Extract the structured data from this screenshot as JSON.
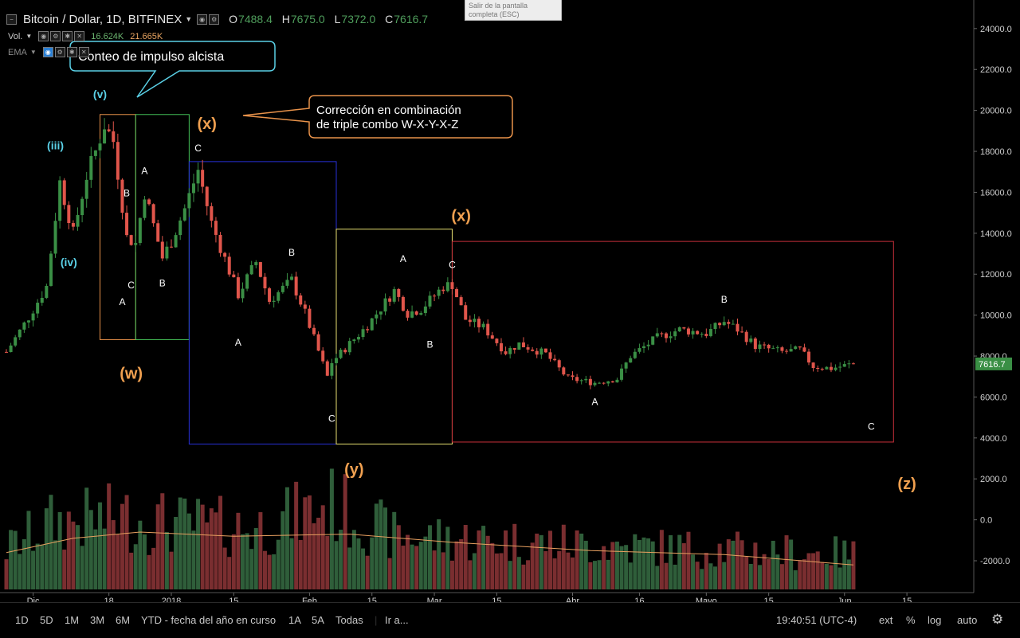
{
  "header": {
    "symbol": "Bitcoin / Dollar, 1D, BITFINEX",
    "ohlc": [
      {
        "k": "O",
        "v": "7488.4"
      },
      {
        "k": "H",
        "v": "7675.0"
      },
      {
        "k": "L",
        "v": "7372.0"
      },
      {
        "k": "C",
        "v": "7616.7"
      }
    ]
  },
  "tooltip": "Salir de la pantalla completa (ESC)",
  "indicators": {
    "vol_label": "Vol.",
    "vol_value1": "16.624K",
    "vol_value2": "21.665K",
    "ema_label": "EMA"
  },
  "annotations": {
    "impulse_callout": "Conteo de impulso alcista",
    "correction_line1": "Corrección en combinación",
    "correction_line2": "de triple combo W-X-Y-X-Z"
  },
  "toolbar": {
    "ranges": [
      "1D",
      "5D",
      "1M",
      "3M",
      "6M",
      "YTD - fecha del año en curso",
      "1A",
      "5A",
      "Todas"
    ],
    "goto": "Ir a...",
    "clock": "19:40:51 (UTC-4)",
    "options": [
      "ext",
      "%",
      "log",
      "auto"
    ]
  },
  "colors": {
    "up": "#3a8f45",
    "down": "#e0554b",
    "wave_main": "#f0a050",
    "wave_impulse": "#5ad0e6",
    "box_w": "#e8924a",
    "box_x1": "#44c058",
    "box_y": "#2830d8",
    "box_x2": "#e8e070",
    "box_z": "#c8303a",
    "price_tag": "#3a8f45"
  },
  "chart_data": {
    "type": "candlestick",
    "title": "Bitcoin / Dollar, 1D, BITFINEX",
    "y_ticks": [
      "24000.0",
      "22000.0",
      "20000.0",
      "18000.0",
      "16000.0",
      "14000.0",
      "12000.0",
      "10000.0",
      "8000.0",
      "6000.0",
      "4000.0",
      "2000.0",
      "0.0",
      "-2000.0"
    ],
    "x_ticks": [
      "Dic",
      "18",
      "2018",
      "15",
      "Feb",
      "15",
      "Mar",
      "15",
      "Abr",
      "16",
      "Mayo",
      "15",
      "Jun",
      "15"
    ],
    "ylim": [
      -3400,
      25200
    ],
    "last_price": "7616.7",
    "price_path": [
      [
        "2017-11-25",
        8200
      ],
      [
        "2017-11-30",
        9900
      ],
      [
        "2017-12-04",
        11400
      ],
      [
        "2017-12-07",
        16500
      ],
      [
        "2017-12-10",
        14000
      ],
      [
        "2017-12-13",
        16800
      ],
      [
        "2017-12-15",
        18000
      ],
      [
        "2017-12-17",
        19300
      ],
      [
        "2017-12-19",
        18500
      ],
      [
        "2017-12-22",
        13800
      ],
      [
        "2017-12-24",
        13500
      ],
      [
        "2017-12-26",
        16000
      ],
      [
        "2017-12-30",
        12800
      ],
      [
        "2018-01-01",
        13600
      ],
      [
        "2018-01-04",
        15200
      ],
      [
        "2018-01-07",
        17100
      ],
      [
        "2018-01-10",
        14500
      ],
      [
        "2018-01-16",
        11000
      ],
      [
        "2018-01-20",
        12600
      ],
      [
        "2018-01-23",
        10700
      ],
      [
        "2018-01-28",
        11700
      ],
      [
        "2018-01-31",
        10100
      ],
      [
        "2018-02-05",
        7000
      ],
      [
        "2018-02-06",
        7700
      ],
      [
        "2018-02-10",
        8600
      ],
      [
        "2018-02-14",
        9500
      ],
      [
        "2018-02-20",
        11200
      ],
      [
        "2018-02-23",
        10100
      ],
      [
        "2018-02-26",
        10300
      ],
      [
        "2018-03-03",
        11400
      ],
      [
        "2018-03-05",
        11500
      ],
      [
        "2018-03-08",
        9800
      ],
      [
        "2018-03-12",
        9400
      ],
      [
        "2018-03-17",
        8200
      ],
      [
        "2018-03-20",
        8600
      ],
      [
        "2018-03-26",
        8100
      ],
      [
        "2018-03-31",
        6900
      ],
      [
        "2018-04-06",
        6700
      ],
      [
        "2018-04-11",
        6900
      ],
      [
        "2018-04-14",
        8000
      ],
      [
        "2018-04-20",
        8900
      ],
      [
        "2018-04-25",
        9300
      ],
      [
        "2018-05-01",
        9100
      ],
      [
        "2018-05-05",
        9700
      ],
      [
        "2018-05-08",
        9300
      ],
      [
        "2018-05-12",
        8500
      ],
      [
        "2018-05-18",
        8200
      ],
      [
        "2018-05-22",
        8300
      ],
      [
        "2018-05-25",
        7500
      ],
      [
        "2018-05-29",
        7400
      ],
      [
        "2018-06-03",
        7616.7
      ]
    ],
    "volume_path": [
      [
        "2017-11-25",
        2200
      ],
      [
        "2017-12-05",
        3600
      ],
      [
        "2017-12-20",
        3900
      ],
      [
        "2018-01-05",
        3500
      ],
      [
        "2018-01-20",
        3300
      ],
      [
        "2018-02-06",
        4600
      ],
      [
        "2018-02-20",
        2900
      ],
      [
        "2018-03-10",
        2700
      ],
      [
        "2018-04-05",
        2400
      ],
      [
        "2018-05-01",
        2200
      ],
      [
        "2018-06-03",
        1900
      ]
    ],
    "volume_ema_path": [
      [
        "2017-11-25",
        1800
      ],
      [
        "2017-12-10",
        2500
      ],
      [
        "2017-12-25",
        2800
      ],
      [
        "2018-01-15",
        2600
      ],
      [
        "2018-02-10",
        2700
      ],
      [
        "2018-03-05",
        2300
      ],
      [
        "2018-04-05",
        1900
      ],
      [
        "2018-05-05",
        1700
      ],
      [
        "2018-06-03",
        1200
      ]
    ],
    "boxes": [
      {
        "name": "w",
        "start": "2017-12-16",
        "end": "2017-12-24",
        "top": 19800,
        "bottom": 8800
      },
      {
        "name": "x1",
        "start": "2017-12-24",
        "end": "2018-01-05",
        "top": 19800,
        "bottom": 8800
      },
      {
        "name": "y",
        "start": "2018-01-05",
        "end": "2018-02-07",
        "top": 17500,
        "bottom": 3700
      },
      {
        "name": "x2",
        "start": "2018-02-07",
        "end": "2018-03-05",
        "top": 14200,
        "bottom": 3700
      },
      {
        "name": "z",
        "start": "2018-03-05",
        "end": "2018-06-12",
        "top": 13600,
        "bottom": 3800
      }
    ],
    "wave_labels": [
      {
        "text": "(v)",
        "date": "2017-12-16",
        "price": 20600,
        "kind": "impulse"
      },
      {
        "text": "(iii)",
        "date": "2017-12-06",
        "price": 18100,
        "kind": "impulse"
      },
      {
        "text": "(iv)",
        "date": "2017-12-09",
        "price": 12400,
        "kind": "impulse"
      },
      {
        "text": "(w)",
        "date": "2017-12-23",
        "price": 6900,
        "kind": "main"
      },
      {
        "text": "(x)",
        "date": "2018-01-09",
        "price": 19100,
        "kind": "main"
      },
      {
        "text": "(y)",
        "date": "2018-02-11",
        "price": 2200,
        "kind": "main"
      },
      {
        "text": "(x)",
        "date": "2018-03-07",
        "price": 14600,
        "kind": "main"
      },
      {
        "text": "(z)",
        "date": "2018-06-15",
        "price": 1500,
        "kind": "main"
      },
      {
        "text": "A",
        "date": "2017-12-21",
        "price": 10500,
        "kind": "minor"
      },
      {
        "text": "B",
        "date": "2017-12-22",
        "price": 15800,
        "kind": "minor"
      },
      {
        "text": "C",
        "date": "2017-12-23",
        "price": 11300,
        "kind": "minor"
      },
      {
        "text": "A",
        "date": "2017-12-26",
        "price": 16900,
        "kind": "minor"
      },
      {
        "text": "B",
        "date": "2017-12-30",
        "price": 11400,
        "kind": "minor"
      },
      {
        "text": "C",
        "date": "2018-01-07",
        "price": 18000,
        "kind": "minor"
      },
      {
        "text": "A",
        "date": "2018-01-16",
        "price": 8500,
        "kind": "minor"
      },
      {
        "text": "B",
        "date": "2018-01-28",
        "price": 12900,
        "kind": "minor"
      },
      {
        "text": "C",
        "date": "2018-02-06",
        "price": 4800,
        "kind": "minor"
      },
      {
        "text": "A",
        "date": "2018-02-22",
        "price": 12600,
        "kind": "minor"
      },
      {
        "text": "B",
        "date": "2018-02-28",
        "price": 8400,
        "kind": "minor"
      },
      {
        "text": "C",
        "date": "2018-03-05",
        "price": 12300,
        "kind": "minor"
      },
      {
        "text": "A",
        "date": "2018-04-06",
        "price": 5600,
        "kind": "minor"
      },
      {
        "text": "B",
        "date": "2018-05-05",
        "price": 10600,
        "kind": "minor"
      },
      {
        "text": "C",
        "date": "2018-06-07",
        "price": 4400,
        "kind": "minor"
      }
    ]
  }
}
